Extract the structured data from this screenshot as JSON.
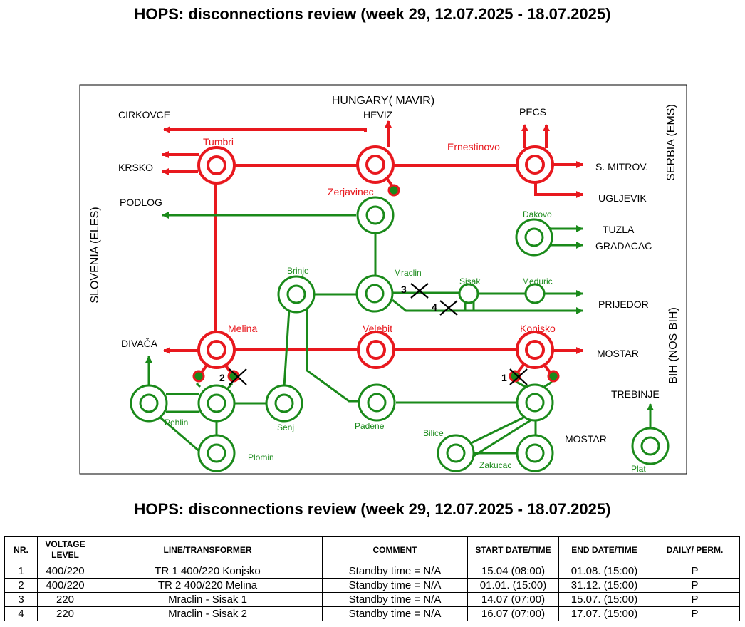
{
  "title": "HOPS: disconnections review (week 29, 12.07.2025 - 18.07.2025)",
  "colors": {
    "red": "#e8181e",
    "green": "#1a8a1a",
    "black": "#000000"
  },
  "diagram": {
    "borders": {
      "hungary": "HUNGARY( MAVIR)",
      "serbia": "SERBIA (EMS)",
      "slovenia": "SLOVENIA (ELES)",
      "bih": "BIH (NOS BIH)"
    },
    "nodes": {
      "tumbri": "Tumbri",
      "heviz_station": "",
      "ernestinovo": "Ernestinovo",
      "zerjavinec": "Zerjavinec",
      "dakovo": "Dakovo",
      "brinje": "Brinje",
      "mraclin": "Mraclin",
      "sisak": "Sisak",
      "meduric": "Meduric",
      "melina": "Melina",
      "velebit": "Velebit",
      "konjsko": "Konjsko",
      "pehlin": "Pehlin",
      "senj": "Senj",
      "padene": "Padene",
      "bilice": "Bilice",
      "zakucac": "Zakucac",
      "plomin": "Plomin",
      "plat": "Plat"
    },
    "destinations": {
      "cirkovce": "CIRKOVCE",
      "krsko": "KRSKO",
      "podlog": "PODLOG",
      "heviz": "HEVIZ",
      "pecs": "PECS",
      "s_mitrov": "S. MITROV.",
      "ugljevik": "UGLJEVIK",
      "tuzla": "TUZLA",
      "gradacac": "GRADACAC",
      "prijedor": "PRIJEDOR",
      "divaca": "DIVAČA",
      "mostar_1": "MOSTAR",
      "mostar_2": "MOSTAR",
      "trebinje": "TREBINJE"
    },
    "markers": {
      "m1": "1",
      "m2": "2",
      "m3": "3",
      "m4": "4"
    }
  },
  "table": {
    "headers": [
      "NR.",
      "VOLTAGE LEVEL",
      "LINE/TRANSFORMER",
      "COMMENT",
      "START DATE/TIME",
      "END DATE/TIME",
      "DAILY/ PERM."
    ],
    "rows": [
      [
        "1",
        "400/220",
        "TR 1 400/220 Konjsko",
        "Standby time = N/A",
        "15.04 (08:00)",
        "01.08. (15:00)",
        "P"
      ],
      [
        "2",
        "400/220",
        "TR 2 400/220 Melina",
        "Standby time = N/A",
        "01.01. (15:00)",
        "31.12. (15:00)",
        "P"
      ],
      [
        "3",
        "220",
        "Mraclin - Sisak 1",
        "Standby time = N/A",
        "14.07 (07:00)",
        "15.07. (15:00)",
        "P"
      ],
      [
        "4",
        "220",
        "Mraclin - Sisak 2",
        "Standby time = N/A",
        "16.07 (07:00)",
        "17.07. (15:00)",
        "P"
      ]
    ]
  }
}
